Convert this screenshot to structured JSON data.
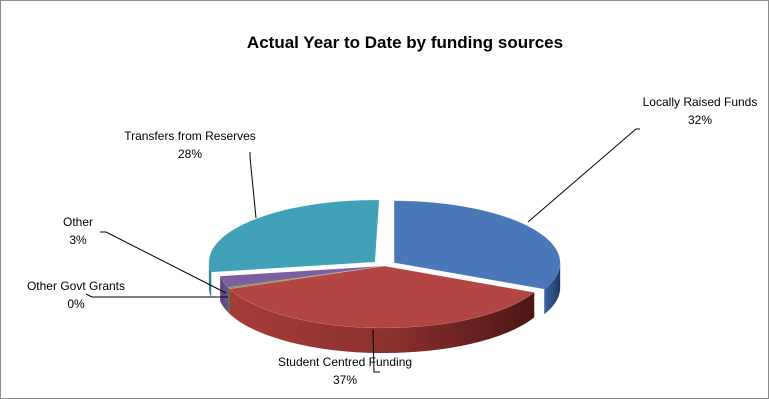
{
  "chart_data": {
    "type": "pie",
    "style": "3d-exploded",
    "title": "Actual Year to Date by funding sources",
    "slices": [
      {
        "name": "Locally Raised Funds",
        "value": 32,
        "pct_label": "32%",
        "color": "#4a77b7"
      },
      {
        "name": "Student Centred Funding",
        "value": 37,
        "pct_label": "37%",
        "color": "#b34542"
      },
      {
        "name": "Other Govt Grants",
        "value": 0,
        "pct_label": "0%",
        "color": "#7a9a3c"
      },
      {
        "name": "Other",
        "value": 3,
        "pct_label": "3%",
        "color": "#7b5fa0"
      },
      {
        "name": "Transfers from Reserves",
        "value": 28,
        "pct_label": "28%",
        "color": "#41a1b8"
      }
    ],
    "legend": "none",
    "data_labels": "outside with leader lines"
  }
}
